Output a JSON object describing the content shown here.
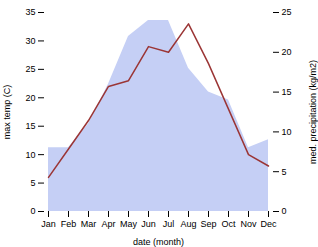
{
  "chart_data": {
    "type": "line",
    "xlabel": "date (month)",
    "ylabel": "max temp (C)",
    "y2label": "med. precipitation (kg/m2)",
    "categories": [
      "Jan",
      "Feb",
      "Mar",
      "Apr",
      "May",
      "Jun",
      "Jul",
      "Aug",
      "Sep",
      "Oct",
      "Nov",
      "Dec"
    ],
    "series": [
      {
        "type": "area",
        "axis": "y2",
        "color": "#c5cff5",
        "values": [
          8,
          8,
          11,
          16,
          22,
          24,
          24,
          18,
          15,
          14,
          8,
          9
        ]
      },
      {
        "type": "line",
        "color": "#9B3535",
        "values": [
          6,
          11,
          16,
          22,
          23,
          29,
          28,
          33,
          26,
          18,
          10,
          8
        ]
      }
    ],
    "ylim": [
      0,
      35
    ],
    "yticks": [
      0,
      5,
      10,
      15,
      20,
      25,
      30,
      35
    ],
    "y2lim": [
      0,
      25
    ],
    "y2ticks": [
      0,
      5,
      10,
      15,
      20,
      25
    ],
    "grid": false
  }
}
